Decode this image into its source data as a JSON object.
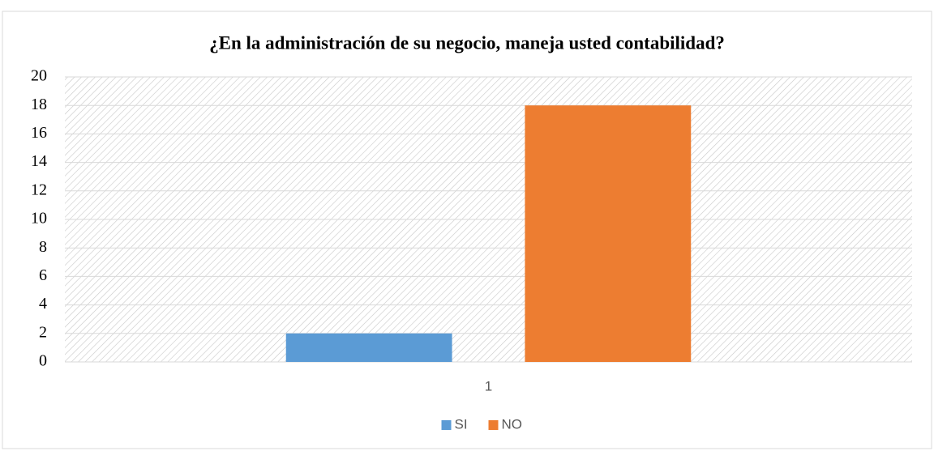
{
  "chart_data": {
    "type": "bar",
    "title": "¿En la administración de su negocio, maneja usted contabilidad?",
    "categories": [
      "1"
    ],
    "series": [
      {
        "name": "SI",
        "color": "#5b9bd5",
        "values": [
          2
        ]
      },
      {
        "name": "NO",
        "color": "#ed7d31",
        "values": [
          18
        ]
      }
    ],
    "ylim": [
      0,
      20
    ],
    "yticks": [
      0,
      2,
      4,
      6,
      8,
      10,
      12,
      14,
      16,
      18,
      20
    ],
    "grid": true,
    "legend": "bottom"
  }
}
